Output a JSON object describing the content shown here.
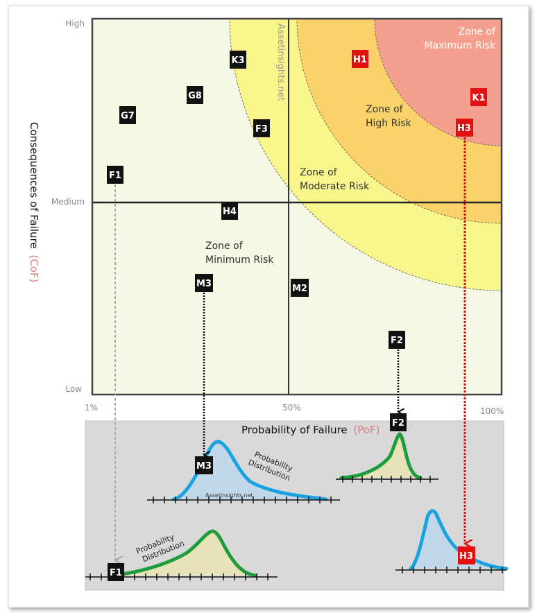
{
  "axes": {
    "y_title_main": "Consequences of Failure",
    "y_title_abbr": "(CoF)",
    "y_ticks": {
      "high": "High",
      "medium": "Medium",
      "low": "Low"
    },
    "x_ticks": {
      "min": "1%",
      "mid": "50%",
      "max": "100%"
    },
    "x_title_main": "Probability of Failure",
    "x_title_abbr": "(PoF)"
  },
  "zones": {
    "maximum": [
      "Zone of",
      "Maximum Risk"
    ],
    "high": [
      "Zone of",
      "High Risk"
    ],
    "moderate": [
      "Zone of",
      "Moderate Risk"
    ],
    "minimum": [
      "Zone of",
      "Minimum Risk"
    ]
  },
  "watermark": "Assetinsights.net",
  "watermark_small": "Assetinsights.net",
  "distribution_label": [
    "Probability",
    "Distribution"
  ],
  "assets": [
    {
      "id": "K3",
      "risk": "low"
    },
    {
      "id": "G8",
      "risk": "low"
    },
    {
      "id": "G7",
      "risk": "low"
    },
    {
      "id": "F3",
      "risk": "low"
    },
    {
      "id": "F1",
      "risk": "low"
    },
    {
      "id": "H4",
      "risk": "low"
    },
    {
      "id": "M3",
      "risk": "low"
    },
    {
      "id": "M2",
      "risk": "low"
    },
    {
      "id": "F2",
      "risk": "low"
    },
    {
      "id": "H1",
      "risk": "high"
    },
    {
      "id": "K1",
      "risk": "high"
    },
    {
      "id": "H3",
      "risk": "high"
    }
  ],
  "colors": {
    "minimum_zone": "#f4f8e4",
    "moderate_zone": "#f8f58a",
    "high_zone": "#fbd269",
    "maximum_zone": "#f5a08e",
    "asset_box": "#111111",
    "critical_box": "#e31010",
    "blue_curve": "#1aa3e0",
    "green_curve": "#1f9c3b",
    "panel": "#d9d9d9"
  }
}
